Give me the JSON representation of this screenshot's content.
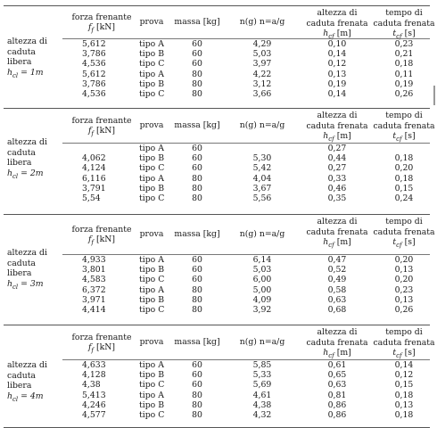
{
  "table": {
    "columns": {
      "forza_line1": "forza frenante",
      "forza_line2_sym": "f",
      "forza_line2_sub": "f",
      "forza_line2_unit": "[kN]",
      "prova": "prova",
      "massa": "massa [kg]",
      "ng": "n(g) n=a/g",
      "alt_line1": "altezza di",
      "alt_line2": "caduta frenata",
      "alt_line3_sym": "h",
      "alt_line3_sub": "cf",
      "alt_line3_unit": "[m]",
      "tempo_line1": "tempo di",
      "tempo_line2": "caduta frenata",
      "tempo_line3_sym": "t",
      "tempo_line3_sub": "cf",
      "tempo_line3_unit": "[s]"
    },
    "blocks": [
      {
        "label_lines": [
          "altezza di",
          "caduta",
          "libera"
        ],
        "label_sym": "h",
        "label_sub": "cl",
        "label_val": " = 1m",
        "rows": [
          {
            "forza": "5,612",
            "prova": "tipo A",
            "massa": "60",
            "ng": "4,29",
            "alt": "0,10",
            "tempo": "0,23"
          },
          {
            "forza": "3,786",
            "prova": "tipo B",
            "massa": "60",
            "ng": "5,03",
            "alt": "0,14",
            "tempo": "0,21"
          },
          {
            "forza": "4,536",
            "prova": "tipo C",
            "massa": "60",
            "ng": "3,97",
            "alt": "0,12",
            "tempo": "0,18"
          },
          {
            "forza": "5,612",
            "prova": "tipo A",
            "massa": "80",
            "ng": "4,22",
            "alt": "0,13",
            "tempo": "0,11"
          },
          {
            "forza": "3,786",
            "prova": "tipo B",
            "massa": "80",
            "ng": "3,12",
            "alt": "0,19",
            "tempo": "0,19"
          },
          {
            "forza": "4,536",
            "prova": "tipo C",
            "massa": "80",
            "ng": "3,66",
            "alt": "0,14",
            "tempo": "0,26"
          }
        ]
      },
      {
        "label_lines": [
          "altezza di",
          "caduta",
          "libera"
        ],
        "label_sym": "h",
        "label_sub": "cl",
        "label_val": " = 2m",
        "rows": [
          {
            "forza": "",
            "prova": "tipo A",
            "massa": "60",
            "ng": "",
            "alt": "0,27",
            "tempo": ""
          },
          {
            "forza": "4,062",
            "prova": "tipo B",
            "massa": "60",
            "ng": "5,30",
            "alt": "0,44",
            "tempo": "0,18"
          },
          {
            "forza": "4,124",
            "prova": "tipo C",
            "massa": "60",
            "ng": "5,42",
            "alt": "0,27",
            "tempo": "0,20"
          },
          {
            "forza": "6,116",
            "prova": "tipo A",
            "massa": "80",
            "ng": "4,04",
            "alt": "0,33",
            "tempo": "0,18"
          },
          {
            "forza": "3,791",
            "prova": "tipo B",
            "massa": "80",
            "ng": "3,67",
            "alt": "0,46",
            "tempo": "0,15"
          },
          {
            "forza": "5,54",
            "prova": "tipo C",
            "massa": "80",
            "ng": "5,56",
            "alt": "0,35",
            "tempo": "0,24"
          }
        ]
      },
      {
        "label_lines": [
          "altezza di",
          "caduta",
          "libera"
        ],
        "label_sym": "h",
        "label_sub": "cl",
        "label_val": " = 3m",
        "rows": [
          {
            "forza": "4,933",
            "prova": "tipo A",
            "massa": "60",
            "ng": "6,14",
            "alt": "0,47",
            "tempo": "0,20"
          },
          {
            "forza": "3,801",
            "prova": "tipo B",
            "massa": "60",
            "ng": "5,03",
            "alt": "0,52",
            "tempo": "0,13"
          },
          {
            "forza": "4,583",
            "prova": "tipo C",
            "massa": "60",
            "ng": "6,00",
            "alt": "0,49",
            "tempo": "0,20"
          },
          {
            "forza": "6,372",
            "prova": "tipo A",
            "massa": "80",
            "ng": "5,00",
            "alt": "0,58",
            "tempo": "0,23"
          },
          {
            "forza": "3,971",
            "prova": "tipo B",
            "massa": "80",
            "ng": "4,09",
            "alt": "0,63",
            "tempo": "0,13"
          },
          {
            "forza": "4,414",
            "prova": "tipo C",
            "massa": "80",
            "ng": "3,92",
            "alt": "0,68",
            "tempo": "0,26"
          }
        ]
      },
      {
        "label_lines": [
          "altezza di",
          "caduta",
          "libera"
        ],
        "label_sym": "h",
        "label_sub": "cl",
        "label_val": " = 4m",
        "rows": [
          {
            "forza": "4,633",
            "prova": "tipo A",
            "massa": "60",
            "ng": "5,85",
            "alt": "0,61",
            "tempo": "0,14"
          },
          {
            "forza": "4,128",
            "prova": "tipo B",
            "massa": "60",
            "ng": "5,33",
            "alt": "0,65",
            "tempo": "0,12"
          },
          {
            "forza": "4,38",
            "prova": "tipo C",
            "massa": "60",
            "ng": "5,69",
            "alt": "0,63",
            "tempo": "0,15"
          },
          {
            "forza": "5,413",
            "prova": "tipo A",
            "massa": "80",
            "ng": "4,61",
            "alt": "0,81",
            "tempo": "0,18"
          },
          {
            "forza": "4,246",
            "prova": "tipo B",
            "massa": "80",
            "ng": "4,38",
            "alt": "0,86",
            "tempo": "0,13"
          },
          {
            "forza": "4,577",
            "prova": "tipo C",
            "massa": "80",
            "ng": "4,32",
            "alt": "0,86",
            "tempo": "0,18"
          }
        ]
      }
    ]
  }
}
